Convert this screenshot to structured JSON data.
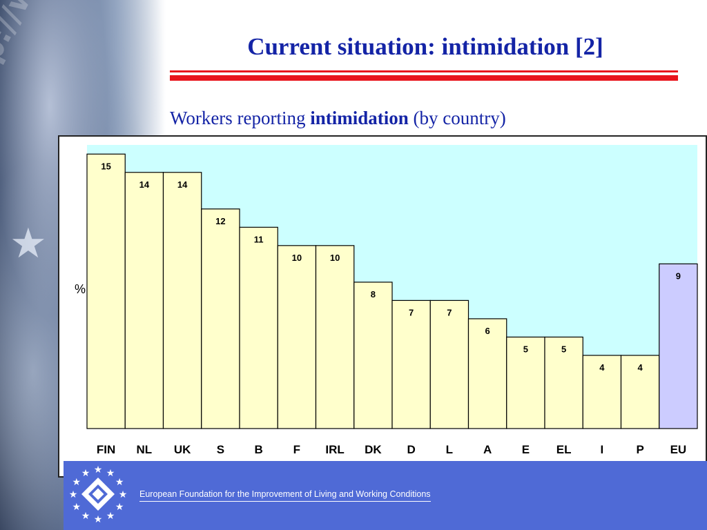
{
  "slide": {
    "title": "Current situation: intimidation [2]",
    "subtitle_prefix": "Workers reporting ",
    "subtitle_bold": "intimidation",
    "subtitle_suffix": " (by country)"
  },
  "footer": {
    "organization": "European Foundation for the Improvement of Living and Working Conditions"
  },
  "colors": {
    "title": "#1424a6",
    "rule": "#e8141c",
    "plot_background": "#ccffff",
    "bar_fill": "#ffffcc",
    "highlight_bar_fill": "#ccccff",
    "footer_background": "#4f6ad6"
  },
  "chart_data": {
    "type": "bar",
    "ylabel": "%",
    "categories": [
      "FIN",
      "NL",
      "UK",
      "S",
      "B",
      "F",
      "IRL",
      "DK",
      "D",
      "L",
      "A",
      "E",
      "EL",
      "I",
      "P",
      "EU"
    ],
    "values": [
      15,
      14,
      14,
      12,
      11,
      10,
      10,
      8,
      7,
      7,
      6,
      5,
      5,
      4,
      4,
      9
    ],
    "highlight_category": "EU",
    "ylim": [
      0,
      15.5
    ],
    "grid": false,
    "legend": "none",
    "data_labels": true
  }
}
